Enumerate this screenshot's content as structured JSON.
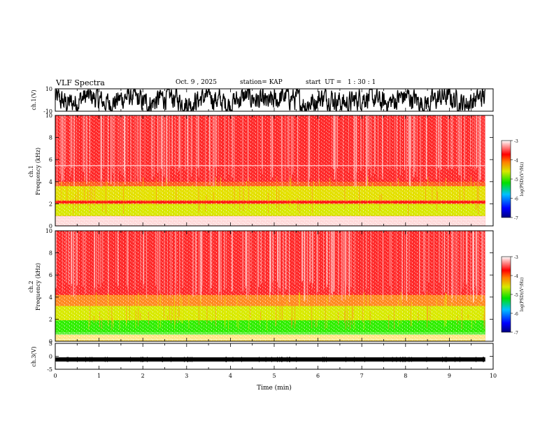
{
  "header": {
    "title": "VLF Spectra",
    "date": "Oct. 9 , 2025",
    "station": "station= KAP",
    "start": "start  UT =   1 : 30 : 1"
  },
  "chart_data": [
    {
      "type": "line",
      "title": "ch.1 waveform",
      "ylabel": "ch.1(V)",
      "ylim": [
        -10,
        10
      ],
      "yticks": [
        "10",
        "-10"
      ],
      "xlim": [
        0,
        10
      ],
      "description_style": "dense black oscillating trace"
    },
    {
      "type": "heatmap",
      "title": "ch.1 spectrogram",
      "ylabel": "ch.1\nFrequency  (kHz)",
      "ylabel_top": "ch.1",
      "ylabel_bottom": "Frequency  (kHz)",
      "ylim": [
        0,
        10
      ],
      "yticks": [
        "0",
        "2",
        "4",
        "6",
        "8",
        "10"
      ],
      "xlim": [
        0,
        10
      ],
      "data_end_min": 9.82,
      "bands": [
        {
          "from": 0.0,
          "to": 0.9,
          "color": "#ffd0d0",
          "note": "light / white lines"
        },
        {
          "from": 0.9,
          "to": 2.0,
          "color": "#d8e800"
        },
        {
          "from": 2.0,
          "to": 2.3,
          "color": "#ff3a2a"
        },
        {
          "from": 2.3,
          "to": 3.6,
          "color": "#e4e000"
        },
        {
          "from": 3.6,
          "to": 4.0,
          "color": "#ff5a20"
        },
        {
          "from": 4.0,
          "to": 10.0,
          "color": "#ff2a2a"
        }
      ],
      "colorbar": {
        "label": "log(PSD)(V²/Hz)",
        "range": [
          -7,
          -3
        ],
        "ticks": [
          "-3",
          "-4",
          "-5",
          "-6",
          "-7"
        ]
      }
    },
    {
      "type": "heatmap",
      "title": "ch.2 spectrogram",
      "ylabel_top": "ch.2",
      "ylabel_bottom": "Frequency  (kHz)",
      "ylim": [
        0,
        10
      ],
      "yticks": [
        "0",
        "2",
        "4",
        "6",
        "8",
        "10"
      ],
      "xlim": [
        0,
        10
      ],
      "data_end_min": 9.82,
      "bands": [
        {
          "from": 0.0,
          "to": 0.6,
          "color": "#ffe060"
        },
        {
          "from": 0.6,
          "to": 1.9,
          "color": "#30ee00"
        },
        {
          "from": 1.9,
          "to": 3.2,
          "color": "#d8ea00"
        },
        {
          "from": 3.2,
          "to": 4.2,
          "color": "#ff8a20"
        },
        {
          "from": 4.2,
          "to": 10.0,
          "color": "#ff2a2a"
        }
      ],
      "colorbar": {
        "label": "log(PSD)(V²/Hz)",
        "range": [
          -7,
          -3
        ],
        "ticks": [
          "-3",
          "-4",
          "-5",
          "-6",
          "-7"
        ]
      }
    },
    {
      "type": "line",
      "title": "ch.3 waveform",
      "ylabel": "ch.3(V)",
      "ylim": [
        -5,
        5
      ],
      "yticks": [
        "5",
        "0",
        "-5"
      ],
      "xlim": [
        0,
        10
      ],
      "xticks": [
        "0",
        "1",
        "2",
        "3",
        "4",
        "5",
        "6",
        "7",
        "8",
        "9",
        "10"
      ],
      "xlabel": "Time  (min)",
      "level_v": -1.2
    }
  ]
}
